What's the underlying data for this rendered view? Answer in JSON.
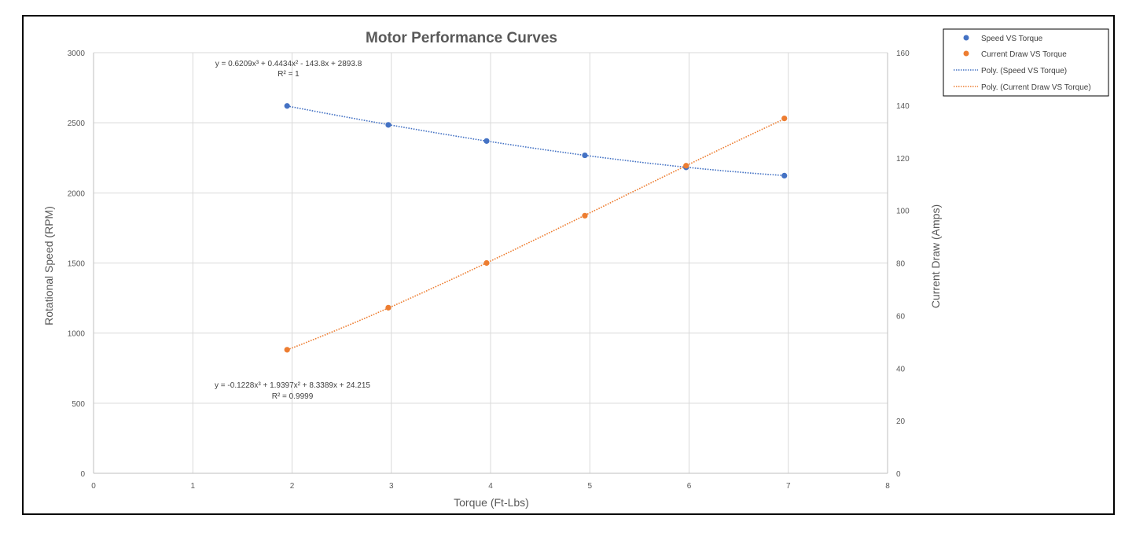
{
  "chart_data": {
    "type": "scatter",
    "title": "Motor Performance Curves",
    "xlabel": "Torque (Ft-Lbs)",
    "ylabel": "Rotational Speed (RPM)",
    "y2label": "Current Draw (Amps)",
    "xlim": [
      0,
      8
    ],
    "ylim": [
      0,
      3000
    ],
    "y2lim": [
      0,
      160
    ],
    "x_ticks": [
      "0",
      "1",
      "2",
      "3",
      "4",
      "5",
      "6",
      "7",
      "8"
    ],
    "y_ticks": [
      "0",
      "500",
      "1000",
      "1500",
      "2000",
      "2500",
      "3000"
    ],
    "y2_ticks": [
      "0",
      "20",
      "40",
      "60",
      "80",
      "100",
      "120",
      "140",
      "160"
    ],
    "grid": true,
    "legend_position": "top-right, outside plot",
    "series": [
      {
        "name": "Speed VS Torque",
        "axis": "left",
        "color": "#4472C4",
        "x": [
          1.95,
          2.97,
          3.96,
          4.95,
          5.97,
          6.96
        ],
        "y": [
          2620,
          2485,
          2370,
          2268,
          2182,
          2123
        ]
      },
      {
        "name": "Current Draw VS Torque",
        "axis": "right",
        "color": "#ED7D31",
        "x": [
          1.95,
          2.97,
          3.96,
          4.95,
          5.97,
          6.96
        ],
        "y": [
          47,
          63,
          80,
          98,
          117,
          135
        ]
      }
    ],
    "trendlines": [
      {
        "name": "Poly. (Speed VS Torque)",
        "series": 0,
        "axis": "left",
        "color": "#4472C4",
        "coefficients": [
          0.6209,
          0.4434,
          -143.8,
          2893.8
        ],
        "equation": "y = 0.6209x³ + 0.4434x² - 143.8x + 2893.8",
        "r2": "R² = 1"
      },
      {
        "name": "Poly. (Current Draw VS Torque)",
        "series": 1,
        "axis": "right",
        "color": "#ED7D31",
        "coefficients": [
          -0.1228,
          1.9397,
          8.3389,
          24.215
        ],
        "equation": "y = -0.1228x³ + 1.9397x² + 8.3389x + 24.215",
        "r2": "R² = 0.9999"
      }
    ]
  }
}
